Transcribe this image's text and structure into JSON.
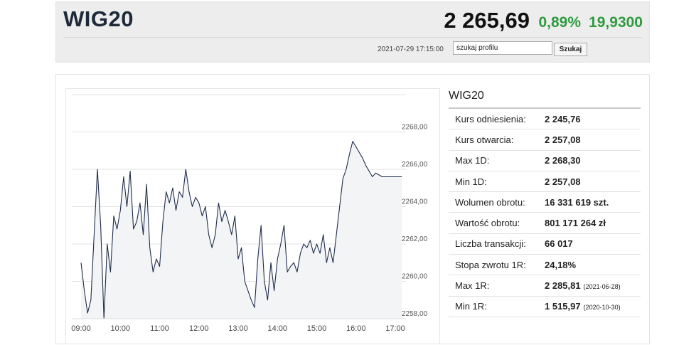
{
  "header": {
    "title": "WIG20",
    "price": "2 265,69",
    "change_pct": "0,89%",
    "change_abs": "19,9300",
    "timestamp": "2021-07-29 17:15:00",
    "search_value": "szukaj profilu",
    "search_button": "Szukaj"
  },
  "colors": {
    "positive": "#2e9b3f",
    "line": "#1f2d4a",
    "area": "#f3f4f6"
  },
  "info": {
    "title": "WIG20",
    "rows": [
      {
        "label": "Kurs odniesienia:",
        "value": "2 245,76",
        "note": ""
      },
      {
        "label": "Kurs otwarcia:",
        "value": "2 257,08",
        "note": ""
      },
      {
        "label": "Max 1D:",
        "value": "2 268,30",
        "note": ""
      },
      {
        "label": "Min 1D:",
        "value": "2 257,08",
        "note": ""
      },
      {
        "label": "Wolumen obrotu:",
        "value": "16 331 619 szt.",
        "note": ""
      },
      {
        "label": "Wartość obrotu:",
        "value": "801 171 264 zł",
        "note": ""
      },
      {
        "label": "Liczba transakcji:",
        "value": "66 017",
        "note": ""
      },
      {
        "label": "Stopa zwrotu 1R:",
        "value": "24,18%",
        "note": ""
      },
      {
        "label": "Max 1R:",
        "value": "2 285,81",
        "note": "(2021-06-28)"
      },
      {
        "label": "Min 1R:",
        "value": "1 515,97",
        "note": "(2020-10-30)"
      }
    ]
  },
  "chart_data": {
    "type": "area",
    "x_ticks": [
      "09:00",
      "10:00",
      "11:00",
      "12:00",
      "13:00",
      "14:00",
      "15:00",
      "16:00",
      "17:00"
    ],
    "y_ticks": [
      "2258,00",
      "2260,00",
      "2262,00",
      "2264,00",
      "2266,00",
      "2268,00"
    ],
    "ylim": [
      2258,
      2270
    ],
    "grid": true,
    "series": [
      {
        "x": [
          "09:00",
          "09:05",
          "09:10",
          "09:15",
          "09:20",
          "09:25",
          "09:30",
          "09:35",
          "09:40",
          "09:45",
          "09:50",
          "09:55",
          "10:00",
          "10:05",
          "10:10",
          "10:15",
          "10:20",
          "10:25",
          "10:30",
          "10:35",
          "10:40",
          "10:45",
          "10:50",
          "10:55",
          "11:00",
          "11:05",
          "11:10",
          "11:15",
          "11:20",
          "11:25",
          "11:30",
          "11:35",
          "11:40",
          "11:45",
          "11:50",
          "11:55",
          "12:00",
          "12:05",
          "12:10",
          "12:15",
          "12:20",
          "12:25",
          "12:30",
          "12:35",
          "12:40",
          "12:45",
          "12:50",
          "12:55",
          "13:00",
          "13:05",
          "13:10",
          "13:15",
          "13:20",
          "13:25",
          "13:30",
          "13:35",
          "13:40",
          "13:45",
          "13:50",
          "13:55",
          "14:00",
          "14:05",
          "14:10",
          "14:15",
          "14:20",
          "14:25",
          "14:30",
          "14:35",
          "14:40",
          "14:45",
          "14:50",
          "14:55",
          "15:00",
          "15:05",
          "15:10",
          "15:15",
          "15:20",
          "15:25",
          "15:30",
          "15:35",
          "15:40",
          "15:45",
          "15:50",
          "15:55",
          "16:00",
          "16:05",
          "16:10",
          "16:15",
          "16:20",
          "16:25",
          "16:30",
          "16:35",
          "16:40",
          "16:45",
          "16:50",
          "16:55",
          "17:00",
          "17:05",
          "17:10"
        ],
        "values": [
          2261.0,
          2259.5,
          2258.3,
          2259.0,
          2262.5,
          2266.0,
          2263.0,
          2258.0,
          2262.0,
          2260.5,
          2263.5,
          2262.8,
          2263.8,
          2265.6,
          2264.0,
          2265.9,
          2262.8,
          2263.2,
          2264.2,
          2262.5,
          2265.2,
          2261.8,
          2260.5,
          2261.2,
          2260.8,
          2263.2,
          2264.8,
          2264.2,
          2265.0,
          2263.8,
          2264.8,
          2264.5,
          2266.0,
          2264.8,
          2264.0,
          2264.5,
          2264.2,
          2263.5,
          2264.0,
          2262.5,
          2261.8,
          2262.5,
          2264.2,
          2263.2,
          2263.8,
          2263.2,
          2262.5,
          2263.5,
          2261.2,
          2261.8,
          2260.0,
          2259.5,
          2259.0,
          2258.6,
          2261.2,
          2263.0,
          2260.0,
          2259.0,
          2261.0,
          2259.5,
          2261.2,
          2262.0,
          2263.0,
          2260.5,
          2260.8,
          2261.0,
          2260.5,
          2261.5,
          2262.0,
          2261.8,
          2262.2,
          2261.5,
          2262.0,
          2261.5,
          2262.5,
          2261.0,
          2261.8,
          2261.0,
          2262.5,
          2264.0,
          2265.5,
          2266.0,
          2266.8,
          2267.5,
          2267.2,
          2266.9,
          2266.6,
          2266.2,
          2265.9,
          2265.6,
          2265.8,
          2265.7,
          2265.6,
          2265.6,
          2265.6,
          2265.6,
          2265.6,
          2265.6,
          2265.6
        ]
      }
    ]
  }
}
